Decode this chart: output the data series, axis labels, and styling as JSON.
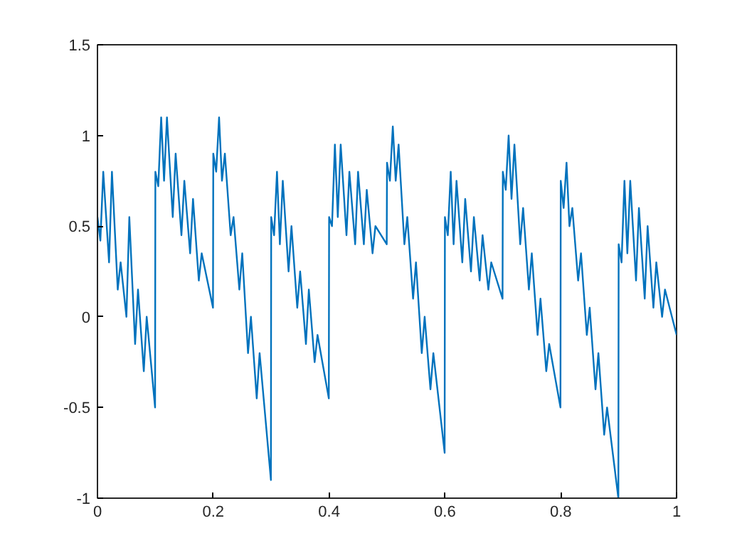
{
  "chart_data": {
    "type": "line",
    "xlim": [
      0,
      1
    ],
    "ylim": [
      -1,
      1.5
    ],
    "xticks": [
      0,
      0.2,
      0.4,
      0.6,
      0.8,
      1
    ],
    "yticks": [
      -1,
      -0.5,
      0,
      0.5,
      1,
      1.5
    ],
    "grid": false,
    "marker": "none",
    "line_style": "solid",
    "series": [
      {
        "color": "#0072bd",
        "x": [
          0,
          0.005,
          0.01,
          0.02,
          0.025,
          0.035,
          0.04,
          0.05,
          0.055,
          0.065,
          0.07,
          0.08,
          0.085,
          0.0995,
          0.1,
          0.105,
          0.11,
          0.115,
          0.12,
          0.13,
          0.135,
          0.145,
          0.15,
          0.16,
          0.165,
          0.175,
          0.18,
          0.1995,
          0.2,
          0.205,
          0.21,
          0.215,
          0.22,
          0.23,
          0.235,
          0.245,
          0.25,
          0.26,
          0.265,
          0.275,
          0.28,
          0.2995,
          0.3,
          0.305,
          0.31,
          0.315,
          0.32,
          0.33,
          0.335,
          0.345,
          0.35,
          0.36,
          0.365,
          0.375,
          0.38,
          0.3995,
          0.4,
          0.405,
          0.41,
          0.415,
          0.42,
          0.43,
          0.435,
          0.445,
          0.45,
          0.46,
          0.465,
          0.475,
          0.48,
          0.4995,
          0.5,
          0.505,
          0.51,
          0.515,
          0.52,
          0.53,
          0.535,
          0.545,
          0.55,
          0.56,
          0.565,
          0.575,
          0.58,
          0.5995,
          0.6,
          0.605,
          0.61,
          0.615,
          0.62,
          0.63,
          0.635,
          0.645,
          0.65,
          0.66,
          0.665,
          0.675,
          0.68,
          0.6995,
          0.7,
          0.705,
          0.71,
          0.715,
          0.72,
          0.73,
          0.735,
          0.745,
          0.75,
          0.76,
          0.765,
          0.775,
          0.78,
          0.7995,
          0.8,
          0.805,
          0.81,
          0.815,
          0.82,
          0.83,
          0.835,
          0.845,
          0.85,
          0.86,
          0.865,
          0.875,
          0.88,
          0.8995,
          0.9,
          0.905,
          0.91,
          0.915,
          0.92,
          0.93,
          0.935,
          0.945,
          0.95,
          0.96,
          0.965,
          0.975,
          0.98,
          1.0
        ],
        "values": [
          0.55,
          0.42,
          0.8,
          0.3,
          0.8,
          0.15,
          0.3,
          0.0,
          0.55,
          -0.15,
          0.15,
          -0.3,
          0.0,
          -0.5,
          0.8,
          0.72,
          1.1,
          0.75,
          1.1,
          0.55,
          0.9,
          0.45,
          0.75,
          0.35,
          0.65,
          0.2,
          0.35,
          0.05,
          0.9,
          0.8,
          1.1,
          0.75,
          0.9,
          0.45,
          0.55,
          0.15,
          0.35,
          -0.2,
          0.0,
          -0.45,
          -0.2,
          -0.9,
          0.55,
          0.45,
          0.8,
          0.4,
          0.75,
          0.25,
          0.5,
          0.05,
          0.25,
          -0.15,
          0.15,
          -0.25,
          -0.1,
          -0.45,
          0.55,
          0.5,
          0.95,
          0.55,
          0.95,
          0.45,
          0.8,
          0.4,
          0.8,
          0.4,
          0.7,
          0.35,
          0.5,
          0.4,
          0.85,
          0.75,
          1.05,
          0.75,
          0.95,
          0.4,
          0.55,
          0.1,
          0.3,
          -0.2,
          0.0,
          -0.4,
          -0.2,
          -0.75,
          0.55,
          0.45,
          0.8,
          0.4,
          0.75,
          0.3,
          0.65,
          0.25,
          0.55,
          0.2,
          0.45,
          0.15,
          0.3,
          0.1,
          0.8,
          0.7,
          1.0,
          0.65,
          0.95,
          0.4,
          0.6,
          0.15,
          0.35,
          -0.1,
          0.1,
          -0.3,
          -0.15,
          -0.5,
          0.75,
          0.6,
          0.85,
          0.5,
          0.6,
          0.2,
          0.35,
          -0.1,
          0.05,
          -0.4,
          -0.2,
          -0.65,
          -0.5,
          -1.0,
          0.4,
          0.3,
          0.75,
          0.35,
          0.75,
          0.2,
          0.6,
          0.1,
          0.5,
          0.05,
          0.3,
          0.0,
          0.15,
          -0.1
        ]
      }
    ]
  }
}
